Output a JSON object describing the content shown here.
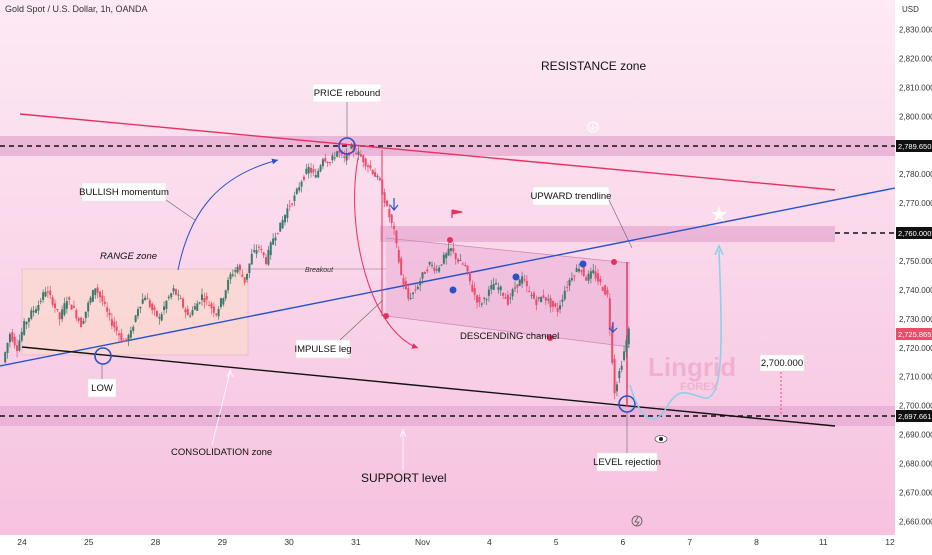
{
  "header": {
    "symbol_title": "Gold Spot / U.S. Dollar, 1h, OANDA",
    "currency": "USD"
  },
  "colors": {
    "bg_top": "#fde6f2",
    "bg_bottom": "#f7c8e2",
    "zone_band": "#e9b3d6",
    "support_line": "#111111",
    "uptrend_line": "#2a52c8",
    "resistance_line": "#e8305e",
    "candle_up": "#3a7a6a",
    "candle_down": "#ef4a6a",
    "projection": "#8fd0e8",
    "range_zone": "#fbd8d0"
  },
  "annotations": {
    "resistance_zone": "RESISTANCE zone",
    "price_rebound": "PRICE rebound",
    "bullish_momentum": "BULLISH momentum",
    "range_zone": "RANGE zone",
    "breakout": "Breakout",
    "upward_trendline": "UPWARD trendline",
    "impulse_leg": "IMPULSE leg",
    "descending_channel": "DESCENDING channel",
    "low": "LOW",
    "consolidation_zone": "CONSOLIDATION zone",
    "level_rejection": "LEVEL rejection",
    "support_level": "SUPPORT level",
    "target_label": "2,700.000",
    "watermark_main": "Lingrid",
    "watermark_sub": "FOREX"
  },
  "chart_data": {
    "type": "candlestick",
    "x_ticks": [
      "24",
      "25",
      "28",
      "29",
      "30",
      "31",
      "Nov",
      "4",
      "5",
      "6",
      "7",
      "8",
      "11",
      "12"
    ],
    "y_ticks": [
      "2,830.000",
      "2,820.000",
      "2,810.000",
      "2,800.000",
      "2,790.000",
      "2,780.000",
      "2,770.000",
      "2,760.000",
      "2,750.000",
      "2,740.000",
      "2,730.000",
      "2,720.000",
      "2,710.000",
      "2,700.000",
      "2,690.000",
      "2,680.000",
      "2,670.000",
      "2,660.000"
    ],
    "ylim": [
      2657,
      2834
    ],
    "levels": {
      "resistance": 2789.65,
      "mid_level": 2760.0,
      "support": 2697.661,
      "last_price": 2725.865
    },
    "price_tags": [
      "2,789.650",
      "2,760.000",
      "2,725.865",
      "2,697.661"
    ],
    "close_path": [
      [
        0,
        2715
      ],
      [
        1,
        2725
      ],
      [
        2,
        2720
      ],
      [
        3,
        2728
      ],
      [
        4,
        2732
      ],
      [
        5,
        2735
      ],
      [
        6,
        2740
      ],
      [
        7,
        2736
      ],
      [
        8,
        2730
      ],
      [
        9,
        2737
      ],
      [
        10,
        2733
      ],
      [
        11,
        2728
      ],
      [
        12,
        2735
      ],
      [
        13,
        2741
      ],
      [
        14,
        2736
      ],
      [
        15,
        2730
      ],
      [
        16,
        2726
      ],
      [
        17,
        2722
      ],
      [
        18,
        2725
      ],
      [
        19,
        2734
      ],
      [
        20,
        2738
      ],
      [
        21,
        2733
      ],
      [
        22,
        2730
      ],
      [
        23,
        2736
      ],
      [
        24,
        2740
      ],
      [
        25,
        2736
      ],
      [
        26,
        2731
      ],
      [
        27,
        2734
      ],
      [
        28,
        2738
      ],
      [
        29,
        2735
      ],
      [
        30,
        2732
      ],
      [
        31,
        2738
      ],
      [
        32,
        2745
      ],
      [
        33,
        2748
      ],
      [
        34,
        2743
      ],
      [
        35,
        2752
      ],
      [
        36,
        2755
      ],
      [
        37,
        2750
      ],
      [
        38,
        2758
      ],
      [
        39,
        2762
      ],
      [
        40,
        2768
      ],
      [
        41,
        2772
      ],
      [
        42,
        2778
      ],
      [
        43,
        2782
      ],
      [
        44,
        2779
      ],
      [
        45,
        2786
      ],
      [
        46,
        2784
      ],
      [
        47,
        2788
      ],
      [
        48,
        2785
      ],
      [
        49,
        2789
      ],
      [
        50,
        2787
      ],
      [
        51,
        2784
      ],
      [
        52,
        2781
      ],
      [
        53,
        2777
      ],
      [
        54,
        2768
      ],
      [
        55,
        2760
      ],
      [
        56,
        2745
      ],
      [
        57,
        2737
      ],
      [
        58,
        2740
      ],
      [
        59,
        2745
      ],
      [
        60,
        2749
      ],
      [
        61,
        2747
      ],
      [
        62,
        2751
      ],
      [
        63,
        2754
      ],
      [
        64,
        2750
      ],
      [
        65,
        2748
      ],
      [
        66,
        2740
      ],
      [
        67,
        2735
      ],
      [
        68,
        2738
      ],
      [
        69,
        2742
      ],
      [
        70,
        2740
      ],
      [
        71,
        2736
      ],
      [
        72,
        2741
      ],
      [
        73,
        2744
      ],
      [
        74,
        2739
      ],
      [
        75,
        2736
      ],
      [
        76,
        2738
      ],
      [
        77,
        2735
      ],
      [
        78,
        2733
      ],
      [
        79,
        2740
      ],
      [
        80,
        2745
      ],
      [
        81,
        2748
      ],
      [
        82,
        2744
      ],
      [
        83,
        2746
      ],
      [
        84,
        2742
      ],
      [
        85,
        2738
      ],
      [
        86,
        2705
      ],
      [
        87,
        2715
      ],
      [
        88,
        2725.865
      ]
    ]
  }
}
